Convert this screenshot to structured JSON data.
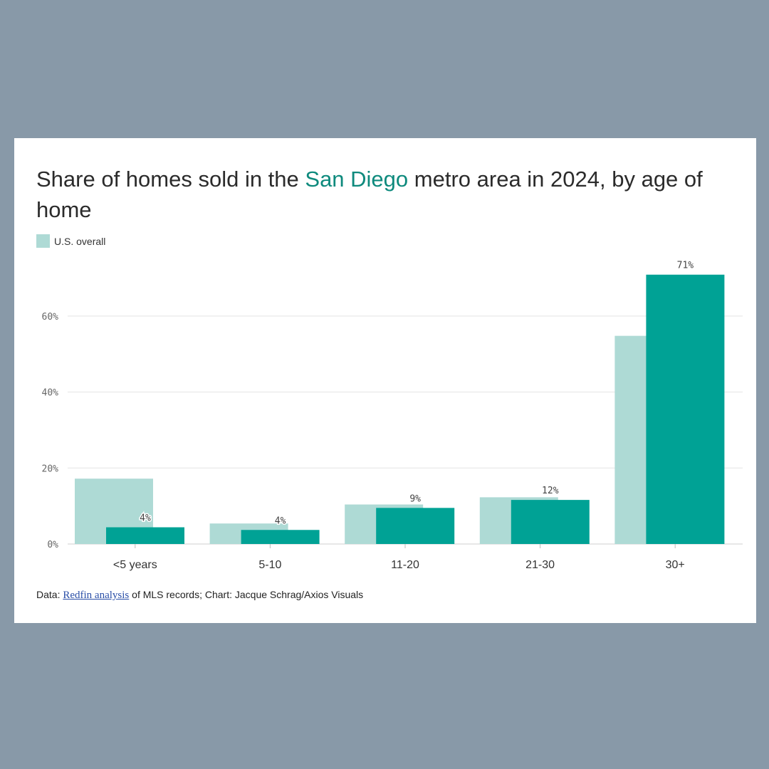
{
  "header": {
    "title_pre": "Share of homes sold in the ",
    "title_highlight": "San Diego",
    "title_post": " metro area in 2024, by age of home"
  },
  "legend": {
    "label": "U.S. overall"
  },
  "colors": {
    "us_overall": "#aedad5",
    "san_diego": "#00a295",
    "highlight_text": "#0e8a7d",
    "background": "#8899a8"
  },
  "source": {
    "prefix": "Data: ",
    "link_text": "Redfin analysis",
    "suffix": " of MLS records; Chart: Jacque Schrag/Axios Visuals"
  },
  "chart_data": {
    "type": "bar",
    "categories": [
      "<5 years",
      "5-10",
      "11-20",
      "21-30",
      "30+"
    ],
    "series": [
      {
        "name": "U.S. overall",
        "values": [
          17.2,
          5.4,
          10.4,
          12.3,
          54.8
        ]
      },
      {
        "values": [
          4.4,
          3.7,
          9.5,
          11.6,
          70.9
        ]
      }
    ],
    "data_labels": [
      "4%",
      "4%",
      "9%",
      "12%",
      "71%"
    ],
    "yticks": [
      0,
      20,
      40,
      60
    ],
    "ytick_labels": [
      "0%",
      "20%",
      "40%",
      "60%"
    ],
    "ylim": [
      0,
      73
    ],
    "grid": true,
    "legend": "top-left"
  }
}
